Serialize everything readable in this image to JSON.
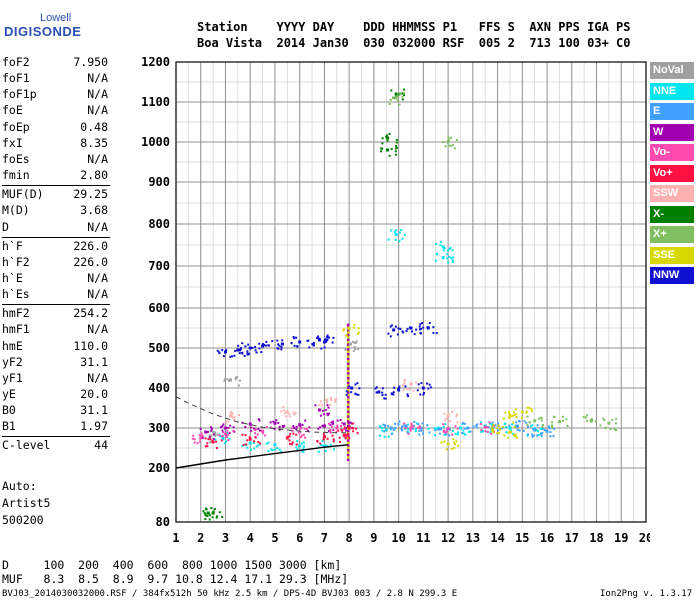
{
  "logo": {
    "line1": "Lowell",
    "line2": "DIGISONDE"
  },
  "header": {
    "line1": "Station    YYYY DAY    DDD HHMMSS P1   FFS S  AXN PPS IGA PS",
    "line2": "Boa Vista  2014 Jan30  030 032000 RSF  005 2  713 100 03+ C0"
  },
  "params": [
    {
      "k": "foF2",
      "v": "7.950"
    },
    {
      "k": "foF1",
      "v": "N/A"
    },
    {
      "k": "foF1p",
      "v": "N/A"
    },
    {
      "k": "foE",
      "v": "N/A"
    },
    {
      "k": "foEp",
      "v": "0.48"
    },
    {
      "k": "fxI",
      "v": "8.35"
    },
    {
      "k": "foEs",
      "v": "N/A"
    },
    {
      "k": "fmin",
      "v": "2.80"
    },
    {
      "k": "MUF(D)",
      "v": "29.25"
    },
    {
      "k": "M(D)",
      "v": "3.68"
    },
    {
      "k": "D",
      "v": "N/A"
    },
    {
      "k": "h`F",
      "v": "226.0"
    },
    {
      "k": "h`F2",
      "v": "226.0"
    },
    {
      "k": "h`E",
      "v": "N/A"
    },
    {
      "k": "h`Es",
      "v": "N/A"
    },
    {
      "k": "hmF2",
      "v": "254.2"
    },
    {
      "k": "hmF1",
      "v": "N/A"
    },
    {
      "k": "hmE",
      "v": "110.0"
    },
    {
      "k": "yF2",
      "v": "31.1"
    },
    {
      "k": "yF1",
      "v": "N/A"
    },
    {
      "k": "yE",
      "v": "20.0"
    },
    {
      "k": "B0",
      "v": "31.1"
    },
    {
      "k": "B1",
      "v": "1.97"
    },
    {
      "k": "C-level",
      "v": "44"
    }
  ],
  "auto": {
    "line1": "Auto:",
    "line2": "Artist5",
    "line3": "500200"
  },
  "legend": [
    {
      "label": "NoVal",
      "color": "#a0a0a0"
    },
    {
      "label": "NNE",
      "color": "#00e5ee"
    },
    {
      "label": "E",
      "color": "#3fa0ff"
    },
    {
      "label": "W",
      "color": "#a000b0"
    },
    {
      "label": "Vo-",
      "color": "#ff4ab0"
    },
    {
      "label": "Vo+",
      "color": "#ff1040"
    },
    {
      "label": "SSW",
      "color": "#ffb0b0"
    },
    {
      "label": "X-",
      "color": "#008000"
    },
    {
      "label": "X+",
      "color": "#80c060"
    },
    {
      "label": "SSE",
      "color": "#d8d800"
    },
    {
      "label": "NNW",
      "color": "#1010d0"
    }
  ],
  "bottom": {
    "d_line": "D     100  200  400  600  800 1000 1500 3000 [km]",
    "muf_line": "MUF   8.3  8.5  8.9  9.7 10.8 12.4 17.1 29.3 [MHz]",
    "footer_left": "BVJ03_2014030032000.RSF / 384fx512h 50 kHz 2.5 km / DPS-4D BVJ03 003 / 2.8 N 299.3 E",
    "footer_right": "Ion2Png v. 1.3.17"
  },
  "chart_data": {
    "type": "scatter",
    "title": "",
    "xlabel": "",
    "ylabel": "",
    "xlim": [
      1,
      20
    ],
    "ylim": [
      80,
      1200
    ],
    "yscale": "nonlinear (true-height ionogram scale)",
    "x_ticks": [
      "1",
      "2",
      "3",
      "4",
      "5",
      "6",
      "7",
      "8",
      "9",
      "10",
      "11",
      "12",
      "13",
      "14",
      "15",
      "16",
      "17",
      "18",
      "19",
      "20"
    ],
    "y_ticks": [
      "80",
      "200",
      "300",
      "400",
      "500",
      "600",
      "700",
      "800",
      "900",
      "1000",
      "1100",
      "1200"
    ],
    "grid": true,
    "legend_position": "right",
    "series": [
      {
        "name": "NoVal",
        "points": [
          [
            8.05,
            510
          ],
          [
            3.2,
            420
          ],
          [
            2.4,
            280
          ]
        ]
      },
      {
        "name": "NNE",
        "points": [
          [
            2.9,
            275
          ],
          [
            4.0,
            262
          ],
          [
            5.0,
            258
          ],
          [
            6.0,
            255
          ],
          [
            7.0,
            255
          ],
          [
            9.5,
            295
          ],
          [
            10.5,
            300
          ],
          [
            11.5,
            298
          ],
          [
            12.5,
            300
          ],
          [
            13.5,
            305
          ],
          [
            14.5,
            300
          ],
          [
            15.5,
            298
          ],
          [
            11.8,
            745
          ],
          [
            11.8,
            720
          ],
          [
            9.9,
            775
          ]
        ]
      },
      {
        "name": "E",
        "points": [
          [
            9.7,
            300
          ],
          [
            10.3,
            305
          ],
          [
            10.9,
            300
          ],
          [
            11.7,
            298
          ],
          [
            12.8,
            300
          ],
          [
            13.8,
            302
          ],
          [
            14.8,
            305
          ],
          [
            15.5,
            295
          ],
          [
            16.0,
            292
          ]
        ]
      },
      {
        "name": "W",
        "points": [
          [
            2.2,
            290
          ],
          [
            3.0,
            300
          ],
          [
            4.0,
            310
          ],
          [
            5.0,
            312
          ],
          [
            6.0,
            308
          ],
          [
            7.0,
            305
          ],
          [
            7.8,
            310
          ],
          [
            6.8,
            345
          ]
        ]
      },
      {
        "name": "Vo-",
        "points": [
          [
            2.0,
            275
          ],
          [
            3.0,
            285
          ],
          [
            4.5,
            292
          ],
          [
            6.0,
            290
          ],
          [
            7.5,
            300
          ],
          [
            10.5,
            300
          ],
          [
            12.0,
            298
          ],
          [
            13.5,
            302
          ]
        ]
      },
      {
        "name": "Vo+",
        "points": [
          [
            2.5,
            265
          ],
          [
            4.0,
            272
          ],
          [
            5.5,
            275
          ],
          [
            7.0,
            278
          ],
          [
            7.8,
            282
          ],
          [
            8.0,
            300
          ]
        ]
      },
      {
        "name": "SSW",
        "points": [
          [
            3.2,
            330
          ],
          [
            5.5,
            340
          ],
          [
            7.1,
            370
          ],
          [
            10.5,
            410
          ],
          [
            12.0,
            330
          ]
        ]
      },
      {
        "name": "X-",
        "points": [
          [
            9.9,
            1120
          ],
          [
            9.55,
            1010
          ],
          [
            9.55,
            980
          ],
          [
            2.5,
            100
          ],
          [
            2.3,
            100
          ]
        ]
      },
      {
        "name": "X+",
        "points": [
          [
            9.9,
            1110
          ],
          [
            12.0,
            1000
          ],
          [
            15.5,
            318
          ],
          [
            16.5,
            316
          ],
          [
            17.8,
            320
          ],
          [
            18.5,
            312
          ]
        ]
      },
      {
        "name": "SSE",
        "points": [
          [
            8.0,
            548
          ],
          [
            14.5,
            330
          ],
          [
            15.0,
            340
          ],
          [
            13.8,
            295
          ],
          [
            14.5,
            290
          ],
          [
            12.0,
            260
          ]
        ]
      },
      {
        "name": "NNW",
        "points": [
          [
            3.0,
            490
          ],
          [
            3.5,
            495
          ],
          [
            4.0,
            500
          ],
          [
            4.5,
            505
          ],
          [
            5.3,
            510
          ],
          [
            6.0,
            515
          ],
          [
            6.8,
            520
          ],
          [
            7.0,
            515
          ],
          [
            8.1,
            400
          ],
          [
            9.2,
            390
          ],
          [
            10.0,
            395
          ],
          [
            11.0,
            400
          ],
          [
            11.2,
            550
          ],
          [
            10.5,
            550
          ],
          [
            9.8,
            545
          ]
        ]
      }
    ],
    "profile_curve": [
      [
        1.0,
        200
      ],
      [
        2.0,
        210
      ],
      [
        3.0,
        220
      ],
      [
        4.0,
        228
      ],
      [
        5.0,
        236
      ],
      [
        6.0,
        244
      ],
      [
        7.0,
        252
      ],
      [
        7.95,
        258
      ]
    ],
    "dashed_curve": [
      [
        1.0,
        378
      ],
      [
        1.5,
        362
      ],
      [
        2.5,
        335
      ],
      [
        3.5,
        315
      ],
      [
        4.5,
        302
      ],
      [
        5.5,
        295
      ],
      [
        6.5,
        290
      ],
      [
        7.5,
        288
      ],
      [
        7.95,
        288
      ]
    ],
    "vertical_marker_x": 7.95
  }
}
